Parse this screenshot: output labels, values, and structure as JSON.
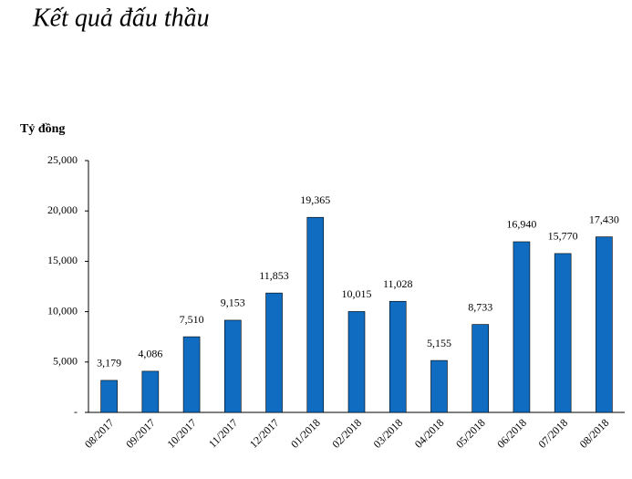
{
  "chart_data": {
    "type": "bar",
    "title": "Kết quả đấu thầu",
    "y_label": "Tỷ đồng",
    "categories": [
      "08/2017",
      "09/2017",
      "10/2017",
      "11/2017",
      "12/2017",
      "01/2018",
      "02/2018",
      "03/2018",
      "04/2018",
      "05/2018",
      "06/2018",
      "07/2018",
      "08/2018"
    ],
    "values": [
      3179,
      4086,
      7510,
      9153,
      11853,
      19365,
      10015,
      11028,
      5155,
      8733,
      16940,
      15770,
      17430
    ],
    "value_labels": [
      "3,179",
      "4,086",
      "7,510",
      "9,153",
      "11,853",
      "19,365",
      "10,015",
      "11,028",
      "5,155",
      "8,733",
      "16,940",
      "15,770",
      "17,430"
    ],
    "color": "#0f6cc0",
    "ylim": [
      0,
      25000
    ],
    "yticks": [
      {
        "value": 0,
        "label": "-"
      },
      {
        "value": 5000,
        "label": "5,000"
      },
      {
        "value": 10000,
        "label": "10,000"
      },
      {
        "value": 15000,
        "label": "15,000"
      },
      {
        "value": 20000,
        "label": "20,000"
      },
      {
        "value": 25000,
        "label": "25,000"
      }
    ],
    "grid": false
  }
}
